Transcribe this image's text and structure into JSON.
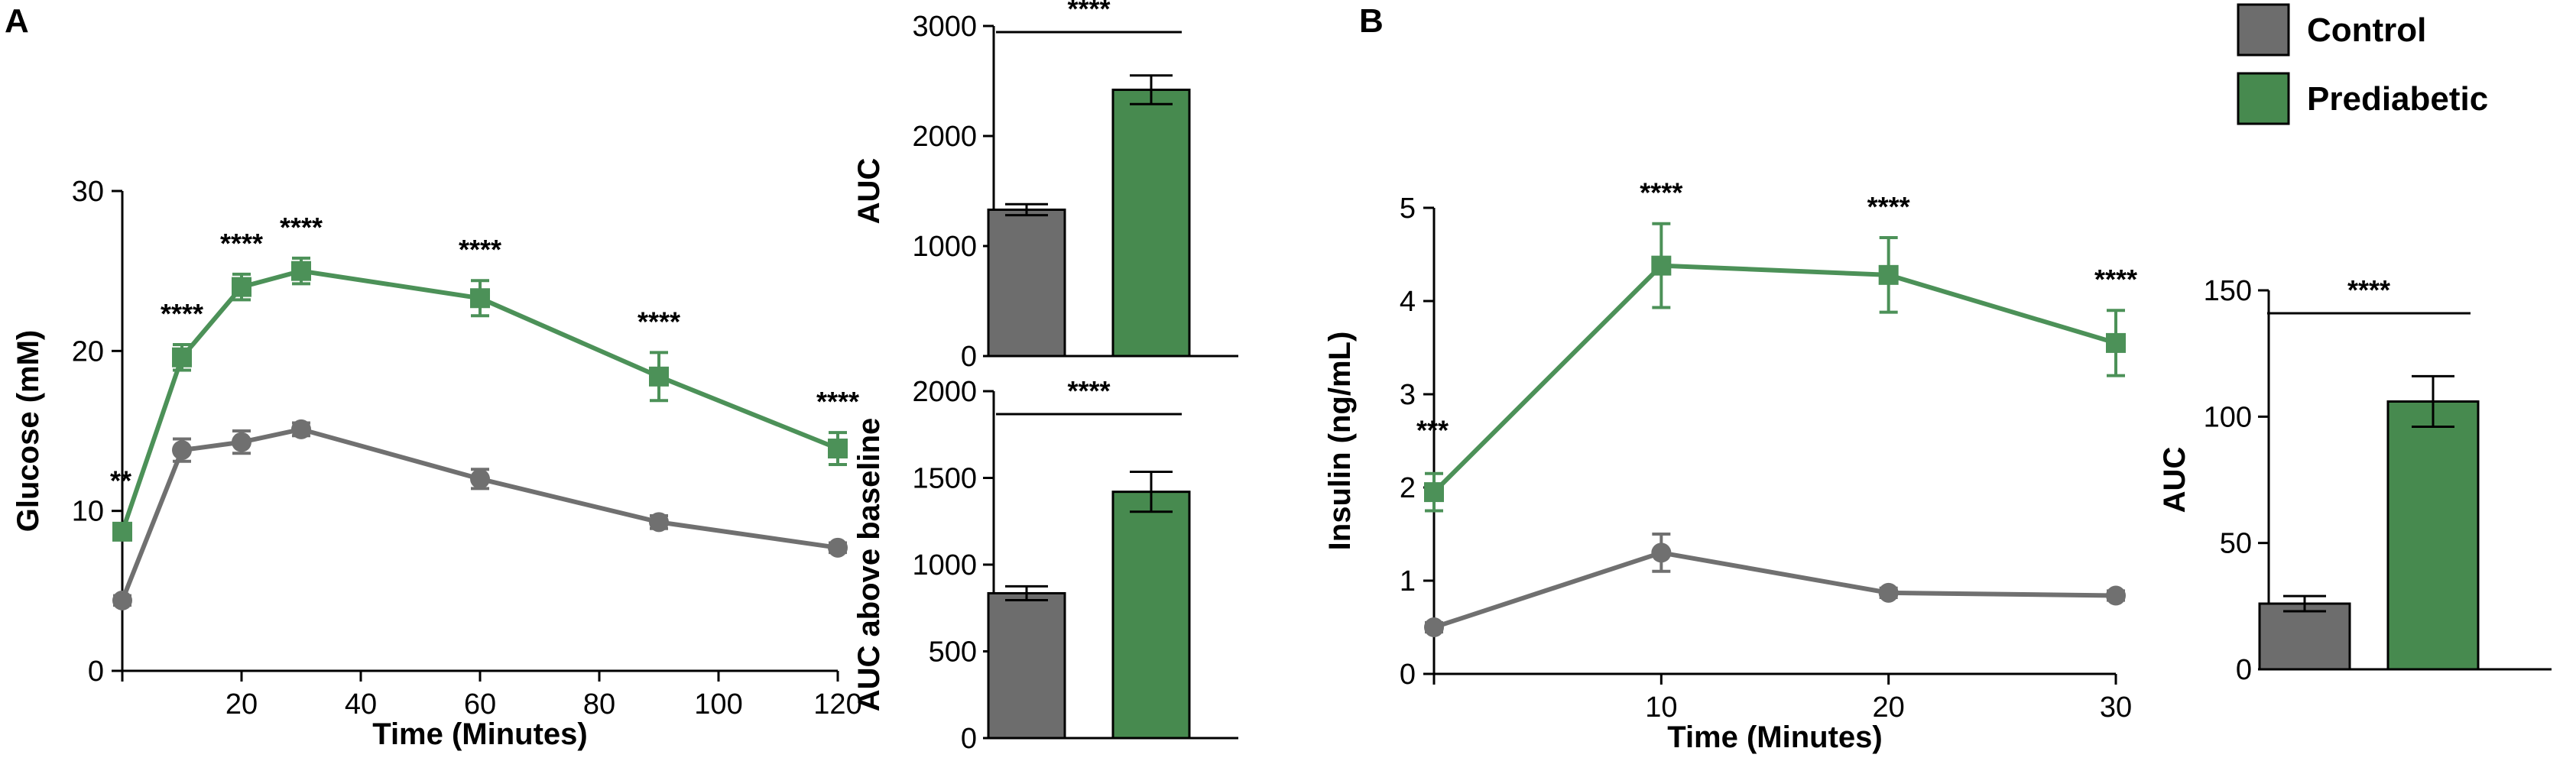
{
  "colors": {
    "control": "#6d6d6d",
    "prediabetic": "#478a4f",
    "control_line": "#707070",
    "prediabetic_line": "#4c9158"
  },
  "legend": [
    {
      "name": "Control",
      "color": "#6d6d6d"
    },
    {
      "name": "Prediabetic",
      "color": "#478a4f"
    }
  ],
  "panels": {
    "a": "A",
    "b": "B"
  },
  "chart_data": [
    {
      "id": "glucose",
      "type": "line",
      "panel": "A",
      "xlabel": "Time (Minutes)",
      "ylabel": "Glucose (mM)",
      "xlim": [
        0,
        120
      ],
      "ylim": [
        0,
        30
      ],
      "xticks": [
        20,
        40,
        60,
        80,
        100,
        120
      ],
      "yticks": [
        0,
        10,
        20,
        30
      ],
      "x": [
        0,
        10,
        20,
        30,
        60,
        90,
        120
      ],
      "series": [
        {
          "name": "Control",
          "values": [
            4.4,
            13.8,
            14.3,
            15.1,
            12.0,
            9.3,
            7.7
          ],
          "errors": [
            0.3,
            0.7,
            0.7,
            0.4,
            0.6,
            0.4,
            0.3
          ],
          "marker": "circle"
        },
        {
          "name": "Prediabetic",
          "values": [
            8.7,
            19.6,
            24.0,
            25.0,
            23.3,
            18.4,
            13.9
          ],
          "errors": [
            0.5,
            0.8,
            0.8,
            0.8,
            1.1,
            1.5,
            1.0
          ],
          "marker": "square"
        }
      ],
      "annotations": [
        {
          "x": 0,
          "text": "**"
        },
        {
          "x": 10,
          "text": "****"
        },
        {
          "x": 20,
          "text": "****"
        },
        {
          "x": 30,
          "text": "****"
        },
        {
          "x": 60,
          "text": "****"
        },
        {
          "x": 90,
          "text": "****"
        },
        {
          "x": 120,
          "text": "****"
        }
      ]
    },
    {
      "id": "glucose_auc",
      "type": "bar",
      "panel": "A",
      "ylabel": "AUC",
      "ylim": [
        0,
        3000
      ],
      "yticks": [
        0,
        1000,
        2000,
        3000
      ],
      "categories": [
        "Control",
        "Prediabetic"
      ],
      "values": [
        1330,
        2420
      ],
      "errors": [
        50,
        130
      ],
      "significance": "****"
    },
    {
      "id": "glucose_auc_baseline",
      "type": "bar",
      "panel": "A",
      "ylabel": "AUC above baseline",
      "ylim": [
        0,
        2000
      ],
      "yticks": [
        0,
        500,
        1000,
        1500,
        2000
      ],
      "categories": [
        "Control",
        "Prediabetic"
      ],
      "values": [
        835,
        1420
      ],
      "errors": [
        40,
        115
      ],
      "significance": "****"
    },
    {
      "id": "insulin",
      "type": "line",
      "panel": "B",
      "xlabel": "Time (Minutes)",
      "ylabel": "Insulin (ng/mL)",
      "xlim": [
        0,
        30
      ],
      "ylim": [
        0,
        5
      ],
      "xticks": [
        10,
        20,
        30
      ],
      "yticks": [
        0,
        1,
        2,
        3,
        4,
        5
      ],
      "x": [
        0,
        10,
        20,
        30
      ],
      "series": [
        {
          "name": "Control",
          "values": [
            0.5,
            1.3,
            0.87,
            0.84
          ],
          "errors": [
            0.05,
            0.2,
            0.05,
            0.05
          ],
          "marker": "circle"
        },
        {
          "name": "Prediabetic",
          "values": [
            1.95,
            4.38,
            4.28,
            3.55
          ],
          "errors": [
            0.2,
            0.45,
            0.4,
            0.35
          ],
          "marker": "square"
        }
      ],
      "annotations": [
        {
          "x": 0,
          "text": "***"
        },
        {
          "x": 10,
          "text": "****"
        },
        {
          "x": 20,
          "text": "****"
        },
        {
          "x": 30,
          "text": "****"
        }
      ]
    },
    {
      "id": "insulin_auc",
      "type": "bar",
      "panel": "B",
      "ylabel": "AUC",
      "ylim": [
        0,
        150
      ],
      "yticks": [
        0,
        50,
        100,
        150
      ],
      "categories": [
        "Control",
        "Prediabetic"
      ],
      "values": [
        26,
        106
      ],
      "errors": [
        3,
        10
      ],
      "significance": "****"
    }
  ]
}
